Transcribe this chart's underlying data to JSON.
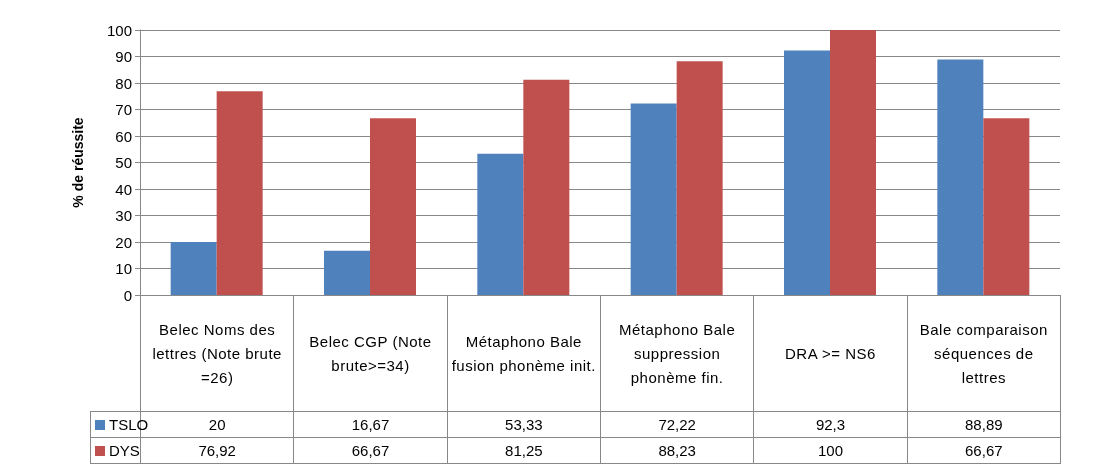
{
  "chart_data": {
    "type": "bar",
    "ylabel": "% de réussite",
    "categories": [
      "Belec Noms des lettres (Note brute =26)",
      "Belec CGP (Note brute>=34)",
      "Métaphono Bale fusion phonème init.",
      "Métaphono Bale suppression phonème fin.",
      "DRA >= NS6",
      "Bale comparaison séquences de lettres"
    ],
    "series": [
      {
        "name": "TSLO",
        "color": "#4f81bd",
        "values": [
          20,
          16.67,
          53.33,
          72.22,
          92.3,
          88.89
        ],
        "value_labels": [
          "20",
          "16,67",
          "53,33",
          "72,22",
          "92,3",
          "88,89"
        ]
      },
      {
        "name": "DYS",
        "color": "#c0504d",
        "values": [
          76.92,
          66.67,
          81.25,
          88.23,
          100,
          66.67
        ],
        "value_labels": [
          "76,92",
          "66,67",
          "81,25",
          "88,23",
          "100",
          "66,67"
        ]
      }
    ],
    "ylim": [
      0,
      100
    ],
    "yticks": [
      0,
      10,
      20,
      30,
      40,
      50,
      60,
      70,
      80,
      90,
      100
    ],
    "grid": "y",
    "legend": "bottom left"
  }
}
